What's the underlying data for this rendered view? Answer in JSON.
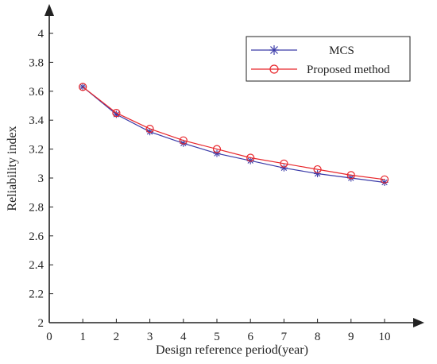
{
  "chart_data": {
    "type": "line",
    "xlabel": "Design reference period(year)",
    "ylabel": "Reliability index",
    "xlim": [
      0,
      10.9
    ],
    "ylim": [
      2,
      4.2
    ],
    "x_ticks": [
      0,
      1,
      2,
      3,
      4,
      5,
      6,
      7,
      8,
      9,
      10
    ],
    "y_ticks": [
      2,
      2.2,
      2.4,
      2.6,
      2.8,
      3,
      3.2,
      3.4,
      3.6,
      3.8,
      4
    ],
    "x_tick_labels": [
      "0",
      "1",
      "2",
      "3",
      "4",
      "5",
      "6",
      "7",
      "8",
      "9",
      "10"
    ],
    "y_tick_labels": [
      "2",
      "2.2",
      "2.4",
      "2.6",
      "2.8",
      "3",
      "3.2",
      "3.4",
      "3.6",
      "3.8",
      "4"
    ],
    "x": [
      1,
      2,
      3,
      4,
      5,
      6,
      7,
      8,
      9,
      10
    ],
    "series": [
      {
        "name": "MCS",
        "values": [
          3.63,
          3.44,
          3.32,
          3.24,
          3.17,
          3.12,
          3.07,
          3.03,
          3.0,
          2.97
        ],
        "color": "#3a3aa8",
        "marker": "asterisk"
      },
      {
        "name": "Proposed method",
        "values": [
          3.63,
          3.45,
          3.34,
          3.26,
          3.2,
          3.14,
          3.1,
          3.06,
          3.02,
          2.99
        ],
        "color": "#e8262b",
        "marker": "circle"
      }
    ],
    "grid": false,
    "legend_position": "top-right"
  }
}
